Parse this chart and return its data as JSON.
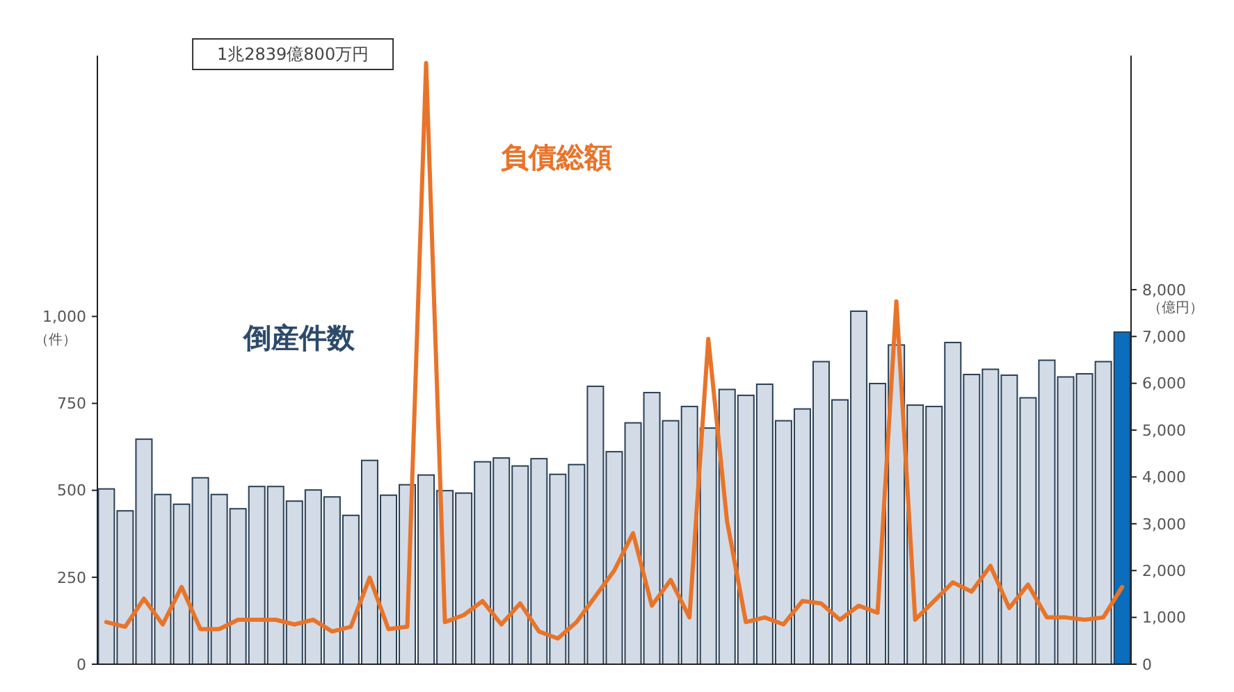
{
  "chart_data": {
    "type": "bar",
    "categories": [
      null,
      null,
      null,
      null,
      null,
      null,
      null,
      null,
      null,
      null,
      null,
      null,
      null,
      null,
      null,
      null,
      null,
      null,
      null,
      null,
      null,
      null,
      null,
      null,
      null,
      null,
      null,
      null,
      null,
      null,
      null,
      null,
      null,
      null,
      null,
      null,
      null,
      null,
      null,
      null,
      null,
      null,
      null,
      null,
      null,
      null,
      null,
      null,
      null,
      null,
      null,
      null,
      null,
      null,
      null
    ],
    "ylabel": "（件）",
    "y2label": "（億円）",
    "ylim": [
      0,
      1750
    ],
    "yticks": [
      0,
      250,
      500,
      {
        "value": 750,
        "label": "750"
      },
      {
        "value": 1000,
        "label": "1,000"
      }
    ],
    "y2lim": [
      0,
      13000
    ],
    "y2ticks": [
      0,
      {
        "value": 1000,
        "label": "1,000"
      },
      {
        "value": 2000,
        "label": "2,000"
      },
      {
        "value": 3000,
        "label": "3,000"
      },
      {
        "value": 4000,
        "label": "4,000"
      },
      {
        "value": 5000,
        "label": "5,000"
      },
      {
        "value": 6000,
        "label": "6,000"
      },
      {
        "value": 7000,
        "label": "7,000"
      },
      {
        "value": 8000,
        "label": "8,000"
      }
    ],
    "series": [
      {
        "name": "倒産件数",
        "colors": [
          "#d3dce6",
          "#d3dce6",
          "#d3dce6",
          "#d3dce6",
          "#d3dce6",
          "#d3dce6",
          "#d3dce6",
          "#d3dce6",
          "#d3dce6",
          "#d3dce6",
          "#d3dce6",
          "#d3dce6",
          "#d3dce6",
          "#d3dce6",
          "#d3dce6",
          "#d3dce6",
          "#d3dce6",
          "#d3dce6",
          "#d3dce6",
          "#d3dce6",
          "#d3dce6",
          "#d3dce6",
          "#d3dce6",
          "#d3dce6",
          "#d3dce6",
          "#d3dce6",
          "#d3dce6",
          "#d3dce6",
          "#d3dce6",
          "#d3dce6",
          "#d3dce6",
          "#d3dce6",
          "#d3dce6",
          "#d3dce6",
          "#d3dce6",
          "#d3dce6",
          "#d3dce6",
          "#d3dce6",
          "#d3dce6",
          "#d3dce6",
          "#d3dce6",
          "#d3dce6",
          "#d3dce6",
          "#d3dce6",
          "#d3dce6",
          "#d3dce6",
          "#d3dce6",
          "#d3dce6",
          "#d3dce6",
          "#d3dce6",
          "#d3dce6",
          "#d3dce6",
          "#d3dce6",
          "#d3dce6",
          "#0a6ebd"
        ],
        "values": [
          504,
          441,
          647,
          488,
          460,
          536,
          488,
          447,
          511,
          511,
          469,
          501,
          481,
          428,
          586,
          486,
          516,
          544,
          499,
          492,
          582,
          593,
          570,
          591,
          546,
          574,
          799,
          611,
          694,
          781,
          700,
          741,
          679,
          790,
          773,
          805,
          700,
          734,
          870,
          760,
          1015,
          807,
          918,
          745,
          741,
          925,
          833,
          848,
          831,
          766,
          874,
          826,
          835,
          870,
          955
        ]
      },
      {
        "name": "負債総額",
        "type": "line",
        "axis": "y2",
        "color": "#e8742a",
        "values": [
          900,
          800,
          1400,
          850,
          1650,
          750,
          750,
          950,
          950,
          950,
          850,
          950,
          700,
          800,
          1850,
          750,
          800,
          12839,
          900,
          1050,
          1350,
          850,
          1300,
          700,
          550,
          900,
          1450,
          2000,
          2800,
          1250,
          1800,
          1000,
          6950,
          3050,
          900,
          1000,
          850,
          1350,
          1300,
          950,
          1250,
          1100,
          7750,
          950,
          1350,
          1750,
          1550,
          2100,
          1200,
          1700,
          1000,
          1000,
          950,
          1000,
          1650
        ]
      }
    ],
    "annotations": [
      "1兆2839億800万円"
    ],
    "legend": false,
    "grid": false
  }
}
